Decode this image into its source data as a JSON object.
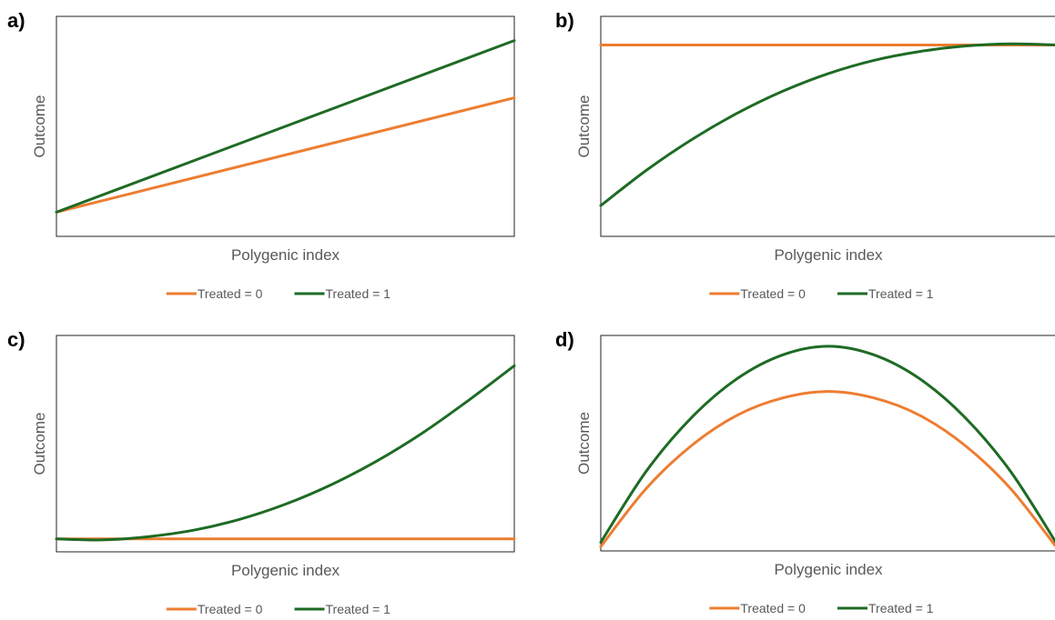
{
  "colors": {
    "treated0": "#ED7D31",
    "treated1": "#1E6B24",
    "frame": "#222222",
    "axis_text": "#595959"
  },
  "chart_data": [
    {
      "type": "line",
      "panel_label": "a)",
      "xlabel": "Polygenic index",
      "ylabel": "Outcome",
      "xlim": [
        0,
        1
      ],
      "ylim": [
        0,
        1
      ],
      "legend": "bottom",
      "grid": false,
      "series": [
        {
          "name": "Treated = 0",
          "color": "#ED7D31",
          "x": [
            0,
            1
          ],
          "y": [
            0.11,
            0.63
          ]
        },
        {
          "name": "Treated = 1",
          "color": "#1E6B24",
          "x": [
            0,
            1
          ],
          "y": [
            0.11,
            0.89
          ]
        }
      ]
    },
    {
      "type": "line",
      "panel_label": "b)",
      "xlabel": "Polygenic index",
      "ylabel": "Outcome",
      "xlim": [
        0,
        1
      ],
      "ylim": [
        0,
        1
      ],
      "legend": "bottom",
      "grid": false,
      "series": [
        {
          "name": "Treated = 0",
          "color": "#ED7D31",
          "x": [
            0,
            1
          ],
          "y": [
            0.87,
            0.87
          ]
        },
        {
          "name": "Treated = 1",
          "color": "#1E6B24",
          "x": [
            0,
            0.1,
            0.2,
            0.3,
            0.4,
            0.5,
            0.6,
            0.7,
            0.8,
            0.9,
            1.0
          ],
          "y": [
            0.14,
            0.3,
            0.44,
            0.56,
            0.66,
            0.74,
            0.8,
            0.84,
            0.865,
            0.875,
            0.87
          ]
        }
      ]
    },
    {
      "type": "line",
      "panel_label": "c)",
      "xlabel": "Polygenic index",
      "ylabel": "Outcome",
      "xlim": [
        0,
        1
      ],
      "ylim": [
        0,
        1
      ],
      "legend": "bottom",
      "grid": false,
      "series": [
        {
          "name": "Treated = 0",
          "color": "#ED7D31",
          "x": [
            0,
            1
          ],
          "y": [
            0.06,
            0.06
          ]
        },
        {
          "name": "Treated = 1",
          "color": "#1E6B24",
          "x": [
            0,
            0.1,
            0.2,
            0.3,
            0.4,
            0.5,
            0.6,
            0.7,
            0.8,
            0.9,
            1.0
          ],
          "y": [
            0.06,
            0.055,
            0.07,
            0.1,
            0.15,
            0.22,
            0.31,
            0.42,
            0.55,
            0.7,
            0.86
          ]
        }
      ]
    },
    {
      "type": "line",
      "panel_label": "d)",
      "xlabel": "Polygenic index",
      "ylabel": "Outcome",
      "xlim": [
        0,
        1
      ],
      "ylim": [
        0,
        1
      ],
      "legend": "bottom",
      "grid": false,
      "series": [
        {
          "name": "Treated = 0",
          "color": "#ED7D31",
          "x": [
            0,
            0.1,
            0.2,
            0.3,
            0.4,
            0.5,
            0.6,
            0.7,
            0.8,
            0.9,
            1.0
          ],
          "y": [
            0.02,
            0.29,
            0.49,
            0.63,
            0.71,
            0.74,
            0.71,
            0.63,
            0.49,
            0.29,
            0.02
          ]
        },
        {
          "name": "Treated = 1",
          "color": "#1E6B24",
          "x": [
            0,
            0.1,
            0.2,
            0.3,
            0.4,
            0.5,
            0.6,
            0.7,
            0.8,
            0.9,
            1.0
          ],
          "y": [
            0.04,
            0.37,
            0.62,
            0.8,
            0.91,
            0.95,
            0.91,
            0.8,
            0.62,
            0.37,
            0.04
          ]
        }
      ]
    }
  ]
}
